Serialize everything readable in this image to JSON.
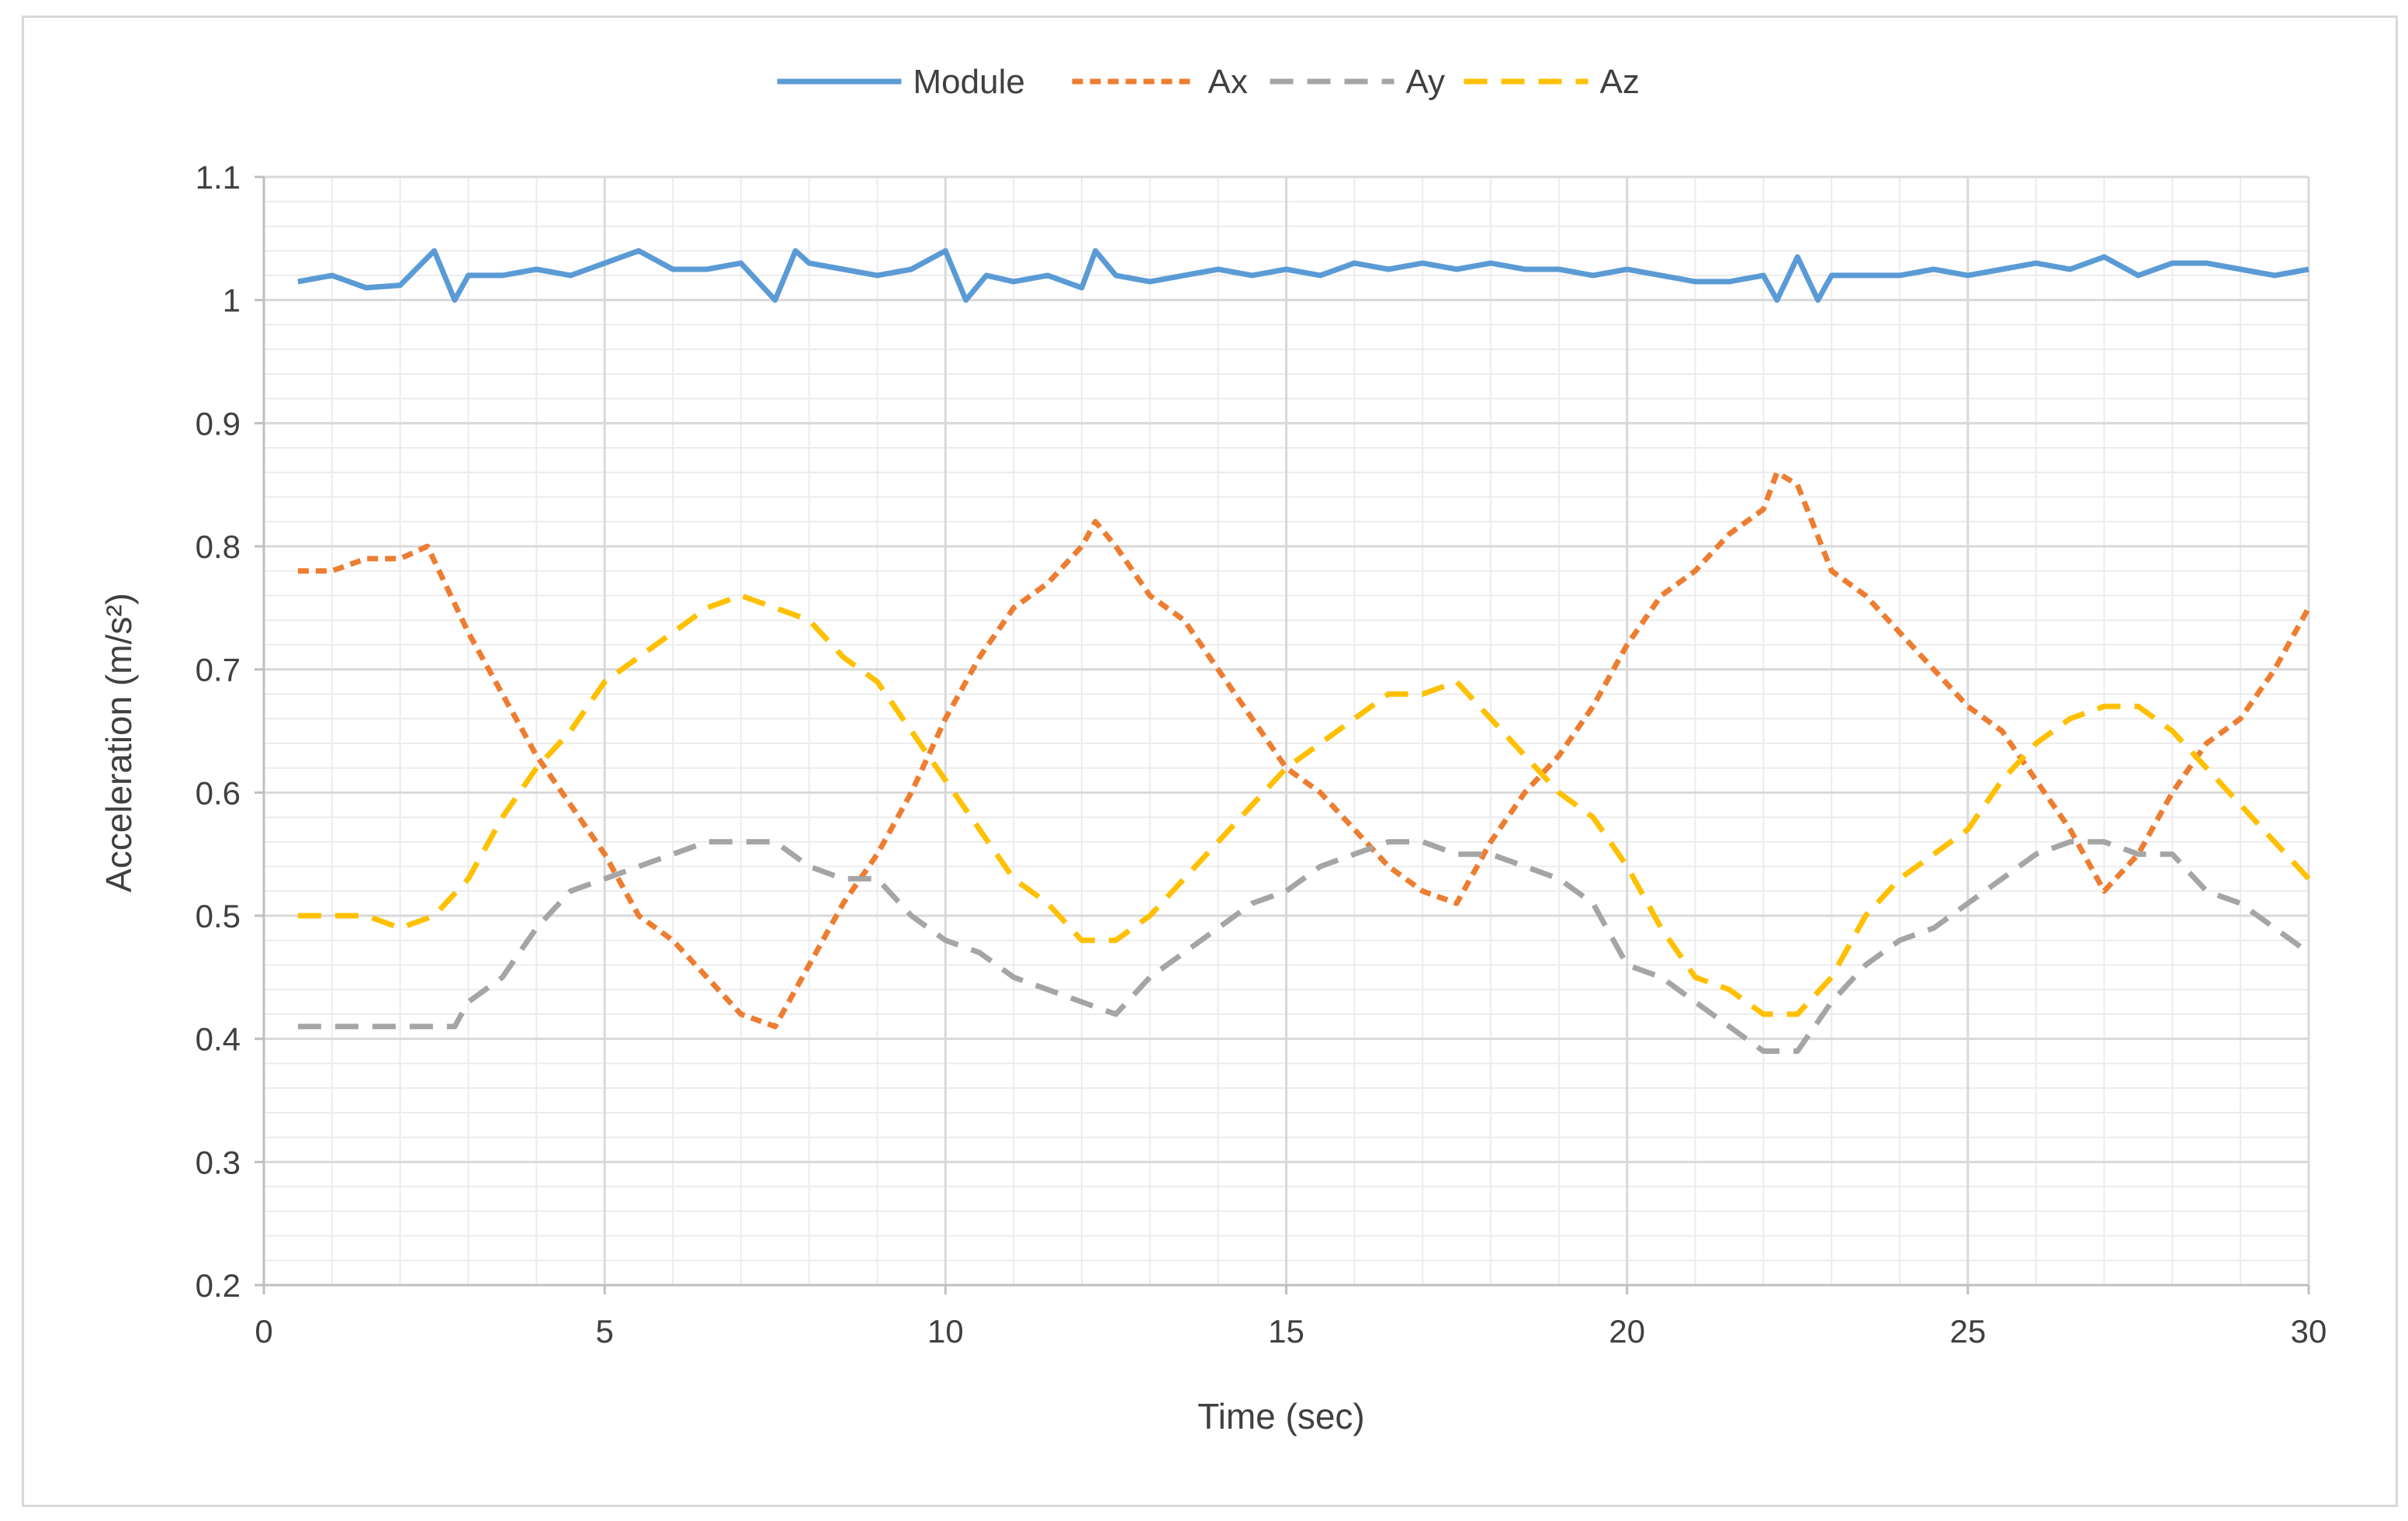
{
  "chart_data": {
    "type": "line",
    "title": "",
    "xlabel": "Time (sec)",
    "ylabel": "Acceleration (m/s²)",
    "xlim": [
      0,
      30
    ],
    "ylim": [
      0.2,
      1.1
    ],
    "x_ticks": [
      0,
      5,
      10,
      15,
      20,
      25,
      30
    ],
    "x_tick_labels": [
      "0",
      "5",
      "10",
      "15",
      "20",
      "25",
      "30"
    ],
    "y_ticks": [
      0.2,
      0.3,
      0.4,
      0.5,
      0.6,
      0.7,
      0.8,
      0.9,
      1.0,
      1.1
    ],
    "y_tick_labels": [
      "0.2",
      "0.3",
      "0.4",
      "0.5",
      "0.6",
      "0.7",
      "0.8",
      "0.9",
      "1",
      "1.1"
    ],
    "grid": true,
    "legend_position": "top-center",
    "series": [
      {
        "name": "Module",
        "color": "#5B9BD5",
        "dash": "solid",
        "points": [
          [
            0.5,
            1.015
          ],
          [
            1,
            1.02
          ],
          [
            1.5,
            1.01
          ],
          [
            2,
            1.012
          ],
          [
            2.5,
            1.04
          ],
          [
            2.8,
            1.0
          ],
          [
            3,
            1.02
          ],
          [
            3.5,
            1.02
          ],
          [
            4,
            1.025
          ],
          [
            4.5,
            1.02
          ],
          [
            5,
            1.03
          ],
          [
            5.5,
            1.04
          ],
          [
            6,
            1.025
          ],
          [
            6.5,
            1.025
          ],
          [
            7,
            1.03
          ],
          [
            7.5,
            1.0
          ],
          [
            7.8,
            1.04
          ],
          [
            8,
            1.03
          ],
          [
            8.5,
            1.025
          ],
          [
            9,
            1.02
          ],
          [
            9.5,
            1.025
          ],
          [
            10,
            1.04
          ],
          [
            10.3,
            1.0
          ],
          [
            10.6,
            1.02
          ],
          [
            11,
            1.015
          ],
          [
            11.5,
            1.02
          ],
          [
            12,
            1.01
          ],
          [
            12.2,
            1.04
          ],
          [
            12.5,
            1.02
          ],
          [
            13,
            1.015
          ],
          [
            13.5,
            1.02
          ],
          [
            14,
            1.025
          ],
          [
            14.5,
            1.02
          ],
          [
            15,
            1.025
          ],
          [
            15.5,
            1.02
          ],
          [
            16,
            1.03
          ],
          [
            16.5,
            1.025
          ],
          [
            17,
            1.03
          ],
          [
            17.5,
            1.025
          ],
          [
            18,
            1.03
          ],
          [
            18.5,
            1.025
          ],
          [
            19,
            1.025
          ],
          [
            19.5,
            1.02
          ],
          [
            20,
            1.025
          ],
          [
            20.5,
            1.02
          ],
          [
            21,
            1.015
          ],
          [
            21.5,
            1.015
          ],
          [
            22,
            1.02
          ],
          [
            22.2,
            1.0
          ],
          [
            22.5,
            1.035
          ],
          [
            22.8,
            1.0
          ],
          [
            23,
            1.02
          ],
          [
            23.5,
            1.02
          ],
          [
            24,
            1.02
          ],
          [
            24.5,
            1.025
          ],
          [
            25,
            1.02
          ],
          [
            25.5,
            1.025
          ],
          [
            26,
            1.03
          ],
          [
            26.5,
            1.025
          ],
          [
            27,
            1.035
          ],
          [
            27.5,
            1.02
          ],
          [
            28,
            1.03
          ],
          [
            28.5,
            1.03
          ],
          [
            29,
            1.025
          ],
          [
            29.5,
            1.02
          ],
          [
            30,
            1.025
          ]
        ]
      },
      {
        "name": "Ax",
        "color": "#ED7D31",
        "dash": "short",
        "points": [
          [
            0.5,
            0.78
          ],
          [
            1,
            0.78
          ],
          [
            1.5,
            0.79
          ],
          [
            2,
            0.79
          ],
          [
            2.4,
            0.8
          ],
          [
            3,
            0.73
          ],
          [
            3.5,
            0.68
          ],
          [
            4,
            0.63
          ],
          [
            4.5,
            0.59
          ],
          [
            5,
            0.55
          ],
          [
            5.5,
            0.5
          ],
          [
            6,
            0.48
          ],
          [
            6.5,
            0.45
          ],
          [
            7,
            0.42
          ],
          [
            7.5,
            0.41
          ],
          [
            8,
            0.46
          ],
          [
            8.5,
            0.51
          ],
          [
            9,
            0.55
          ],
          [
            9.5,
            0.6
          ],
          [
            10,
            0.66
          ],
          [
            10.5,
            0.71
          ],
          [
            11,
            0.75
          ],
          [
            11.5,
            0.77
          ],
          [
            12,
            0.8
          ],
          [
            12.2,
            0.82
          ],
          [
            12.5,
            0.8
          ],
          [
            13,
            0.76
          ],
          [
            13.5,
            0.74
          ],
          [
            14,
            0.7
          ],
          [
            14.5,
            0.66
          ],
          [
            15,
            0.62
          ],
          [
            15.5,
            0.6
          ],
          [
            16,
            0.57
          ],
          [
            16.5,
            0.54
          ],
          [
            17,
            0.52
          ],
          [
            17.5,
            0.51
          ],
          [
            18,
            0.56
          ],
          [
            18.5,
            0.6
          ],
          [
            19,
            0.63
          ],
          [
            19.5,
            0.67
          ],
          [
            20,
            0.72
          ],
          [
            20.5,
            0.76
          ],
          [
            21,
            0.78
          ],
          [
            21.5,
            0.81
          ],
          [
            22,
            0.83
          ],
          [
            22.2,
            0.86
          ],
          [
            22.5,
            0.85
          ],
          [
            23,
            0.78
          ],
          [
            23.5,
            0.76
          ],
          [
            24,
            0.73
          ],
          [
            24.5,
            0.7
          ],
          [
            25,
            0.67
          ],
          [
            25.5,
            0.65
          ],
          [
            26,
            0.61
          ],
          [
            26.5,
            0.57
          ],
          [
            27,
            0.52
          ],
          [
            27.5,
            0.55
          ],
          [
            28,
            0.6
          ],
          [
            28.5,
            0.64
          ],
          [
            29,
            0.66
          ],
          [
            29.5,
            0.7
          ],
          [
            30,
            0.75
          ]
        ]
      },
      {
        "name": "Ay",
        "color": "#A5A5A5",
        "dash": "long",
        "points": [
          [
            0.5,
            0.41
          ],
          [
            1,
            0.41
          ],
          [
            1.5,
            0.41
          ],
          [
            2,
            0.41
          ],
          [
            2.8,
            0.41
          ],
          [
            3,
            0.43
          ],
          [
            3.5,
            0.45
          ],
          [
            4,
            0.49
          ],
          [
            4.5,
            0.52
          ],
          [
            5,
            0.53
          ],
          [
            5.5,
            0.54
          ],
          [
            6,
            0.55
          ],
          [
            6.5,
            0.56
          ],
          [
            7,
            0.56
          ],
          [
            7.5,
            0.56
          ],
          [
            8,
            0.54
          ],
          [
            8.5,
            0.53
          ],
          [
            9,
            0.53
          ],
          [
            9.5,
            0.5
          ],
          [
            10,
            0.48
          ],
          [
            10.5,
            0.47
          ],
          [
            11,
            0.45
          ],
          [
            11.5,
            0.44
          ],
          [
            12,
            0.43
          ],
          [
            12.5,
            0.42
          ],
          [
            13,
            0.45
          ],
          [
            13.5,
            0.47
          ],
          [
            14,
            0.49
          ],
          [
            14.5,
            0.51
          ],
          [
            15,
            0.52
          ],
          [
            15.5,
            0.54
          ],
          [
            16,
            0.55
          ],
          [
            16.5,
            0.56
          ],
          [
            17,
            0.56
          ],
          [
            17.5,
            0.55
          ],
          [
            18,
            0.55
          ],
          [
            18.5,
            0.54
          ],
          [
            19,
            0.53
          ],
          [
            19.5,
            0.51
          ],
          [
            20,
            0.46
          ],
          [
            20.5,
            0.45
          ],
          [
            21,
            0.43
          ],
          [
            21.5,
            0.41
          ],
          [
            22,
            0.39
          ],
          [
            22.5,
            0.39
          ],
          [
            23,
            0.43
          ],
          [
            23.5,
            0.46
          ],
          [
            24,
            0.48
          ],
          [
            24.5,
            0.49
          ],
          [
            25,
            0.51
          ],
          [
            25.5,
            0.53
          ],
          [
            26,
            0.55
          ],
          [
            26.5,
            0.56
          ],
          [
            27,
            0.56
          ],
          [
            27.5,
            0.55
          ],
          [
            28,
            0.55
          ],
          [
            28.5,
            0.52
          ],
          [
            29,
            0.51
          ],
          [
            29.5,
            0.49
          ],
          [
            30,
            0.47
          ]
        ]
      },
      {
        "name": "Az",
        "color": "#FFC000",
        "dash": "long",
        "points": [
          [
            0.5,
            0.5
          ],
          [
            1,
            0.5
          ],
          [
            1.5,
            0.5
          ],
          [
            2,
            0.49
          ],
          [
            2.5,
            0.5
          ],
          [
            3,
            0.53
          ],
          [
            3.5,
            0.58
          ],
          [
            4,
            0.62
          ],
          [
            4.5,
            0.65
          ],
          [
            5,
            0.69
          ],
          [
            5.5,
            0.71
          ],
          [
            6,
            0.73
          ],
          [
            6.5,
            0.75
          ],
          [
            7,
            0.76
          ],
          [
            7.5,
            0.75
          ],
          [
            8,
            0.74
          ],
          [
            8.5,
            0.71
          ],
          [
            9,
            0.69
          ],
          [
            9.5,
            0.65
          ],
          [
            10,
            0.61
          ],
          [
            10.5,
            0.57
          ],
          [
            11,
            0.53
          ],
          [
            11.5,
            0.51
          ],
          [
            12,
            0.48
          ],
          [
            12.5,
            0.48
          ],
          [
            13,
            0.5
          ],
          [
            13.5,
            0.53
          ],
          [
            14,
            0.56
          ],
          [
            14.5,
            0.59
          ],
          [
            15,
            0.62
          ],
          [
            15.5,
            0.64
          ],
          [
            16,
            0.66
          ],
          [
            16.5,
            0.68
          ],
          [
            17,
            0.68
          ],
          [
            17.5,
            0.69
          ],
          [
            18,
            0.66
          ],
          [
            18.5,
            0.63
          ],
          [
            19,
            0.6
          ],
          [
            19.5,
            0.58
          ],
          [
            20,
            0.54
          ],
          [
            20.5,
            0.49
          ],
          [
            21,
            0.45
          ],
          [
            21.5,
            0.44
          ],
          [
            22,
            0.42
          ],
          [
            22.5,
            0.42
          ],
          [
            23,
            0.45
          ],
          [
            23.5,
            0.5
          ],
          [
            24,
            0.53
          ],
          [
            24.5,
            0.55
          ],
          [
            25,
            0.57
          ],
          [
            25.5,
            0.61
          ],
          [
            26,
            0.64
          ],
          [
            26.5,
            0.66
          ],
          [
            27,
            0.67
          ],
          [
            27.5,
            0.67
          ],
          [
            28,
            0.65
          ],
          [
            28.5,
            0.62
          ],
          [
            29,
            0.59
          ],
          [
            29.5,
            0.56
          ],
          [
            30,
            0.53
          ]
        ]
      }
    ]
  }
}
